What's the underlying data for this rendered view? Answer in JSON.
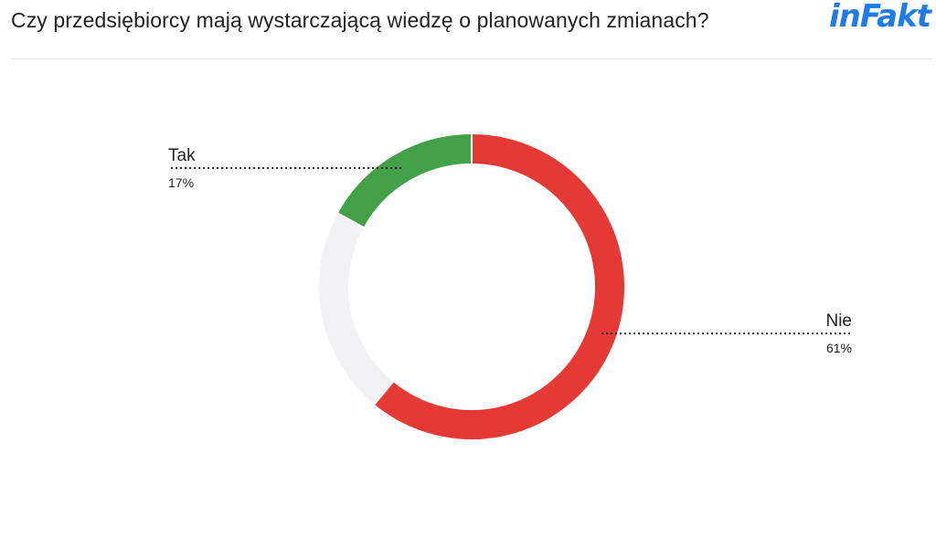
{
  "header": {
    "title": "Czy przedsiębiorcy mają wystarczającą wiedzę o planowanych zmianach?",
    "logo_text": "inFakt",
    "logo_color": "#1f7be6"
  },
  "chart_data": {
    "type": "pie",
    "donut": true,
    "title": "Czy przedsiębiorcy mają wystarczającą wiedzę o planowanych zmianach?",
    "slices": [
      {
        "label": "Nie",
        "value": 61,
        "value_label": "61%",
        "color": "#e53935"
      },
      {
        "label": "",
        "value": 22,
        "value_label": "",
        "color": "#f1f2f4"
      },
      {
        "label": "Tak",
        "value": 17,
        "value_label": "17%",
        "color": "#43a047"
      }
    ],
    "start": "top",
    "direction": "clockwise",
    "legend": "none"
  }
}
